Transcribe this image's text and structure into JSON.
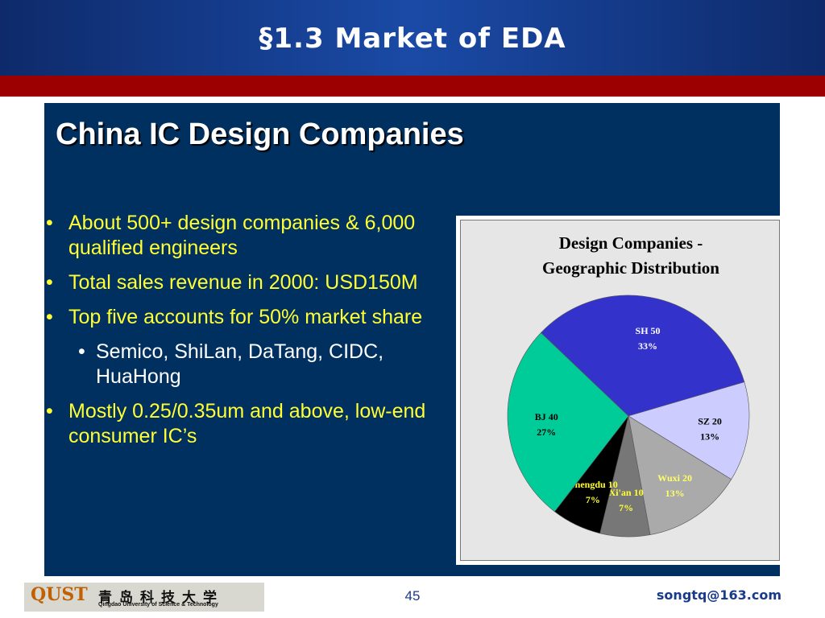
{
  "slide": {
    "title": "§1.3 Market of EDA"
  },
  "panel": {
    "heading": "China IC Design Companies",
    "bullets": [
      {
        "text": "About 500+ design companies & 6,000 qualified engineers"
      },
      {
        "text": "Total sales revenue in 2000: USD150M"
      },
      {
        "text": "Top five accounts for 50% market share"
      },
      {
        "text": "Semico, ShiLan, DaTang, CIDC, HuaHong"
      },
      {
        "text": "Mostly 0.25/0.35um and above, low-end consumer IC’s"
      }
    ]
  },
  "chart_data": {
    "type": "pie",
    "title_line1": "Design Companies -",
    "title_line2": "Geographic Distribution",
    "slices": [
      {
        "name": "SH",
        "value": 50,
        "percent": "33%",
        "color": "#3333cc",
        "label_color": "#ffffff"
      },
      {
        "name": "SZ",
        "value": 20,
        "percent": "13%",
        "color": "#ccccff",
        "label_color": "#000000"
      },
      {
        "name": "Wuxi",
        "value": 20,
        "percent": "13%",
        "color": "#aaaaaa",
        "label_color": "#ffff66"
      },
      {
        "name": "Xi'an",
        "value": 10,
        "percent": "7%",
        "color": "#777777",
        "label_color": "#ffff33"
      },
      {
        "name": "Chengdu",
        "value": 10,
        "percent": "7%",
        "color": "#000000",
        "label_color": "#ffff33"
      },
      {
        "name": "BJ",
        "value": 40,
        "percent": "27%",
        "color": "#00cc99",
        "label_color": "#000000"
      }
    ]
  },
  "footer": {
    "logo_mark": "QUST",
    "logo_cn": "青岛科技大学",
    "logo_en": "Qingdao University of Science & Technology",
    "page_number": "45",
    "email": "songtq@163.com"
  }
}
